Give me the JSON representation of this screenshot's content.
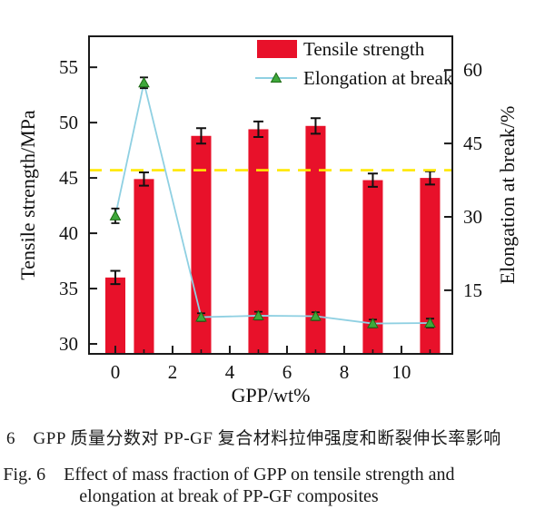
{
  "figure": {
    "caption_zh": "图 6　GPP 质量分数对 PP-GF 复合材料拉伸强度和断裂伸长率影响",
    "caption_en_line1": "Fig. 6　Effect of mass fraction of GPP on tensile strength and",
    "caption_en_line2": "elongation at break of PP-GF composites"
  },
  "chart_data": {
    "type": "bar",
    "overlay_type": "line",
    "x": [
      0,
      1,
      3,
      5,
      7,
      9,
      11
    ],
    "series": [
      {
        "name": "Tensile strength",
        "plot": "bar",
        "axis": "left",
        "color": "#e8112a",
        "values": [
          36.0,
          44.9,
          48.8,
          49.4,
          49.7,
          44.8,
          45.0
        ],
        "errors": [
          0.6,
          0.6,
          0.7,
          0.7,
          0.7,
          0.6,
          0.6
        ]
      },
      {
        "name": "Elongation at break",
        "plot": "line",
        "axis": "right",
        "line_color": "#8fd0e2",
        "marker": "triangle",
        "marker_fill": "#3fa83c",
        "marker_stroke": "#1d6b14",
        "values": [
          30.2,
          57.4,
          9.5,
          9.8,
          9.7,
          8.2,
          8.3
        ],
        "errors": [
          1.5,
          1.1,
          0.8,
          0.8,
          0.8,
          0.8,
          0.9
        ]
      }
    ],
    "reference_line": {
      "axis": "left",
      "value": 45.7,
      "color": "#ffe800",
      "style": "dashed"
    },
    "title": "",
    "xlabel": "GPP/wt%",
    "ylabel_left": "Tensile strength/MPa",
    "ylabel_right": "Elongation at break/%",
    "xlim": [
      -0.92,
      11.78
    ],
    "ylim_left": [
      29.1,
      57.8
    ],
    "ylim_right": [
      2.0,
      66.9
    ],
    "xticks": [
      0,
      2,
      4,
      6,
      8,
      10
    ],
    "xminorticks": [
      1,
      3,
      5,
      7,
      9,
      11
    ],
    "yticks_left": [
      30,
      35,
      40,
      45,
      50,
      55
    ],
    "yticks_right": [
      15,
      30,
      45,
      60
    ],
    "bar_width_units": 0.7,
    "grid": false,
    "legend_position": "top-right-inside",
    "error_bar_color": "#111111"
  }
}
